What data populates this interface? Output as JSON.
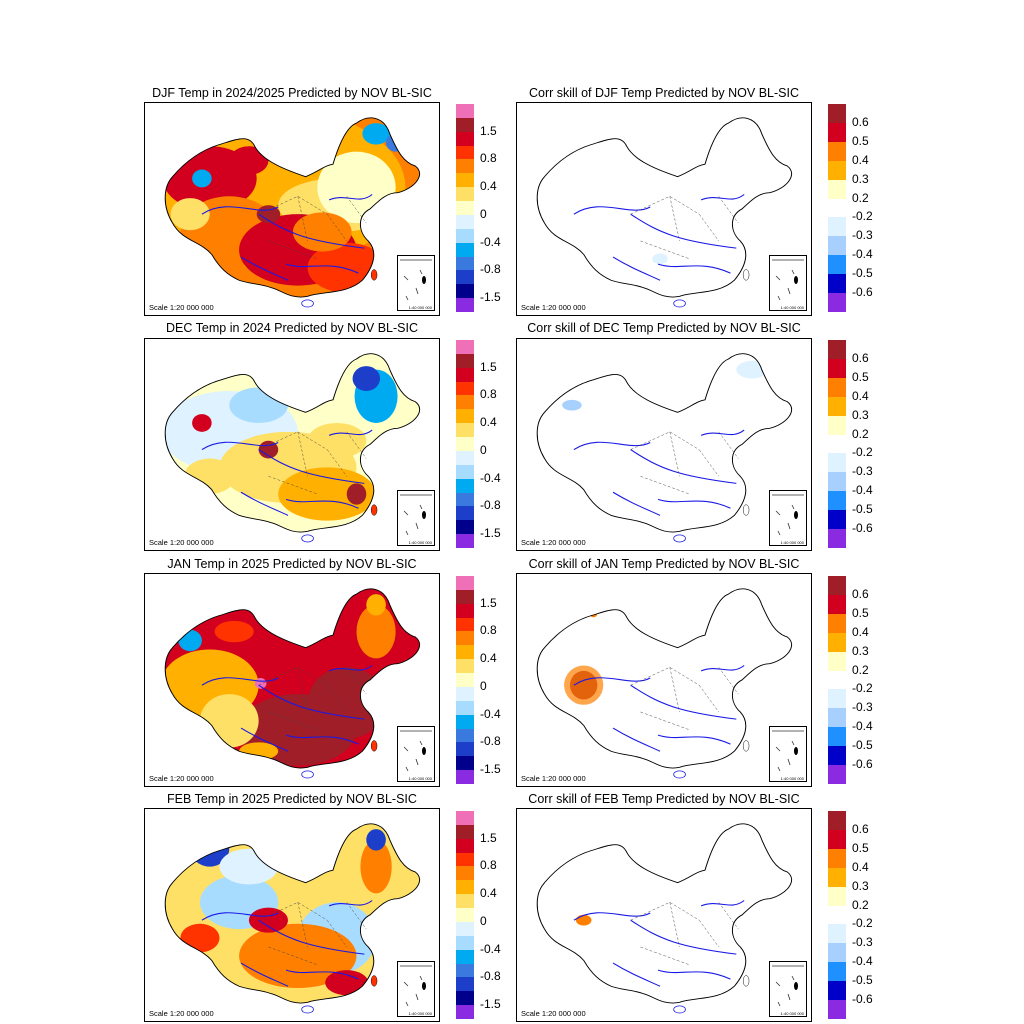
{
  "panels": [
    {
      "title": "DJF Temp in 2024/2025 Predicted by NOV BL-SIC",
      "scale": "Scale 1:20 000 000",
      "inset_scale": "1:40 000 000",
      "legend": "temp",
      "pattern": "djf"
    },
    {
      "title": "Corr skill of DJF Temp Predicted by NOV BL-SIC",
      "scale": "Scale 1:20 000 000",
      "inset_scale": "1:40 000 000",
      "legend": "corr",
      "pattern": "corr1"
    },
    {
      "title": "DEC Temp in 2024 Predicted by NOV BL-SIC",
      "scale": "Scale 1:20 000 000",
      "inset_scale": "1:40 000 000",
      "legend": "temp",
      "pattern": "dec"
    },
    {
      "title": "Corr skill of DEC Temp Predicted by NOV BL-SIC",
      "scale": "Scale 1:20 000 000",
      "inset_scale": "1:40 000 000",
      "legend": "corr",
      "pattern": "corr2"
    },
    {
      "title": "JAN Temp in 2025 Predicted by NOV BL-SIC",
      "scale": "Scale 1:20 000 000",
      "inset_scale": "1:40 000 000",
      "legend": "temp",
      "pattern": "jan"
    },
    {
      "title": "Corr skill of JAN Temp Predicted by NOV BL-SIC",
      "scale": "Scale 1:20 000 000",
      "inset_scale": "1:40 000 000",
      "legend": "corr",
      "pattern": "corr3"
    },
    {
      "title": "FEB Temp in 2025 Predicted by NOV BL-SIC",
      "scale": "Scale 1:20 000 000",
      "inset_scale": "1:40 000 000",
      "legend": "temp",
      "pattern": "feb"
    },
    {
      "title": "Corr skill of FEB Temp Predicted by NOV BL-SIC",
      "scale": "Scale 1:20 000 000",
      "inset_scale": "1:40 000 000",
      "legend": "corr",
      "pattern": "corr4"
    }
  ],
  "legends": {
    "temp": {
      "colors": [
        "#f070b8",
        "#a01e28",
        "#d2001e",
        "#ff3300",
        "#ff7f00",
        "#ffb000",
        "#ffe066",
        "#ffffc8",
        "#dff2ff",
        "#a8dcff",
        "#00aaf0",
        "#3a7adf",
        "#1c3ec8",
        "#00008c",
        "#8a2be2"
      ],
      "labels": [
        "1.5",
        "0.8",
        "0.4",
        "0",
        "-0.4",
        "-0.8",
        "-1.5"
      ]
    },
    "corr": {
      "colors": [
        "#a01e28",
        "#d2001e",
        "#ff7f00",
        "#ffb000",
        "#ffffc8",
        "#ffffff",
        "#dff2ff",
        "#a8d0ff",
        "#1e90ff",
        "#0000c8",
        "#8a2be2"
      ],
      "labels": [
        "0.6",
        "0.5",
        "0.4",
        "0.3",
        "0.2",
        "-0.2",
        "-0.3",
        "-0.4",
        "-0.5",
        "-0.6"
      ]
    }
  },
  "chart_data": [
    {
      "type": "heatmap",
      "title": "DJF Temp in 2024/2025 Predicted by NOV BL-SIC",
      "colorbar_ticks": [
        1.5,
        0.8,
        0.4,
        0,
        -0.4,
        -0.8,
        -1.5
      ]
    },
    {
      "type": "heatmap",
      "title": "Corr skill of DJF Temp Predicted by NOV BL-SIC",
      "colorbar_ticks": [
        0.6,
        0.5,
        0.4,
        0.3,
        0.2,
        -0.2,
        -0.3,
        -0.4,
        -0.5,
        -0.6
      ]
    },
    {
      "type": "heatmap",
      "title": "DEC Temp in 2024 Predicted by NOV BL-SIC",
      "colorbar_ticks": [
        1.5,
        0.8,
        0.4,
        0,
        -0.4,
        -0.8,
        -1.5
      ]
    },
    {
      "type": "heatmap",
      "title": "Corr skill of DEC Temp Predicted by NOV BL-SIC",
      "colorbar_ticks": [
        0.6,
        0.5,
        0.4,
        0.3,
        0.2,
        -0.2,
        -0.3,
        -0.4,
        -0.5,
        -0.6
      ]
    },
    {
      "type": "heatmap",
      "title": "JAN Temp in 2025 Predicted by NOV BL-SIC",
      "colorbar_ticks": [
        1.5,
        0.8,
        0.4,
        0,
        -0.4,
        -0.8,
        -1.5
      ]
    },
    {
      "type": "heatmap",
      "title": "Corr skill of JAN Temp Predicted by NOV BL-SIC",
      "colorbar_ticks": [
        0.6,
        0.5,
        0.4,
        0.3,
        0.2,
        -0.2,
        -0.3,
        -0.4,
        -0.5,
        -0.6
      ]
    },
    {
      "type": "heatmap",
      "title": "FEB Temp in 2025 Predicted by NOV BL-SIC",
      "colorbar_ticks": [
        1.5,
        0.8,
        0.4,
        0,
        -0.4,
        -0.8,
        -1.5
      ]
    },
    {
      "type": "heatmap",
      "title": "Corr skill of FEB Temp Predicted by NOV BL-SIC",
      "colorbar_ticks": [
        0.6,
        0.5,
        0.4,
        0.3,
        0.2,
        -0.2,
        -0.3,
        -0.4,
        -0.5,
        -0.6
      ]
    }
  ]
}
